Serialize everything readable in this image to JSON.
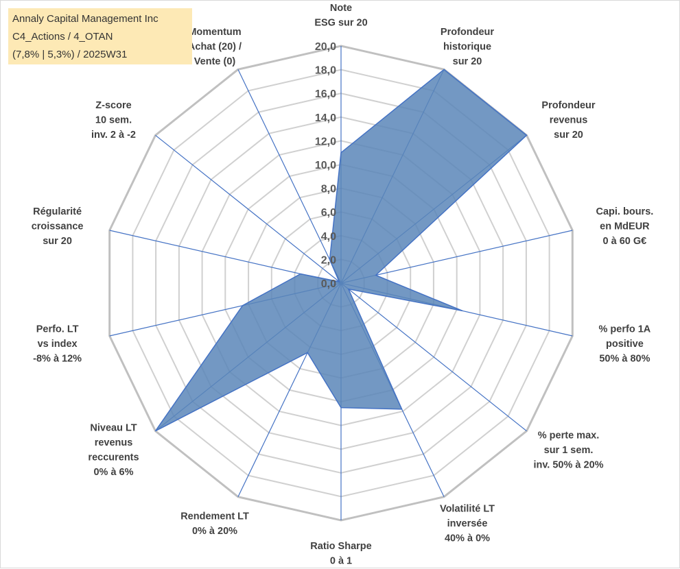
{
  "header": {
    "lines": [
      "Annaly Capital Management Inc",
      "C4_Actions / 4_OTAN",
      "(7,8% | 5,3%) / 2025W31"
    ]
  },
  "colors": {
    "fill": "#5a86b8",
    "stroke": "#4472c4",
    "outer_ring": "#c0c0c0",
    "inner_ring": "#d0d0d0",
    "spoke": "#4472c4",
    "title_bg": "#fde9b5"
  },
  "chart_data": {
    "type": "radar",
    "title": "",
    "range": [
      0,
      20
    ],
    "ticks": [
      "0,0",
      "2,0",
      "4,0",
      "6,0",
      "8,0",
      "10,0",
      "12,0",
      "14,0",
      "16,0",
      "18,0",
      "20,0"
    ],
    "grid": true,
    "legend": "none",
    "axes": [
      {
        "label": [
          "Note",
          "ESG sur 20"
        ],
        "value": 11.0
      },
      {
        "label": [
          "Profondeur",
          "historique",
          "sur 20"
        ],
        "value": 20.0
      },
      {
        "label": [
          "Profondeur",
          "revenus",
          "sur 20"
        ],
        "value": 20.0
      },
      {
        "label": [
          "Capi. bours.",
          "en MdEUR",
          "0 à 60 G€"
        ],
        "value": 3.0
      },
      {
        "label": [
          "% perfo 1A",
          "positive",
          "50% à 80%"
        ],
        "value": 10.5
      },
      {
        "label": [
          "% perte max.",
          "sur 1 sem.",
          "inv. 50% à 20%"
        ],
        "value": 0.8
      },
      {
        "label": [
          "Volatilité LT",
          "inversée",
          "40% à 0%"
        ],
        "value": 11.8
      },
      {
        "label": [
          "Ratio Sharpe",
          "0 à 1"
        ],
        "value": 10.5
      },
      {
        "label": [
          "Rendement LT",
          "0% à 20%"
        ],
        "value": 6.5
      },
      {
        "label": [
          "Niveau LT",
          "revenus",
          "reccurents",
          "0% à 6%"
        ],
        "value": 20.0
      },
      {
        "label": [
          "Perfo. LT",
          "vs index",
          "-8% à 12%"
        ],
        "value": 8.5
      },
      {
        "label": [
          "Régularité",
          "croissance",
          "sur 20"
        ],
        "value": 3.5
      },
      {
        "label": [
          "Z-score",
          "10 sem.",
          "inv. 2 à -2"
        ],
        "value": 0.2
      },
      {
        "label": [
          "Momentum",
          "Achat (20) /",
          "Vente (0)"
        ],
        "value": 2.2
      }
    ]
  }
}
